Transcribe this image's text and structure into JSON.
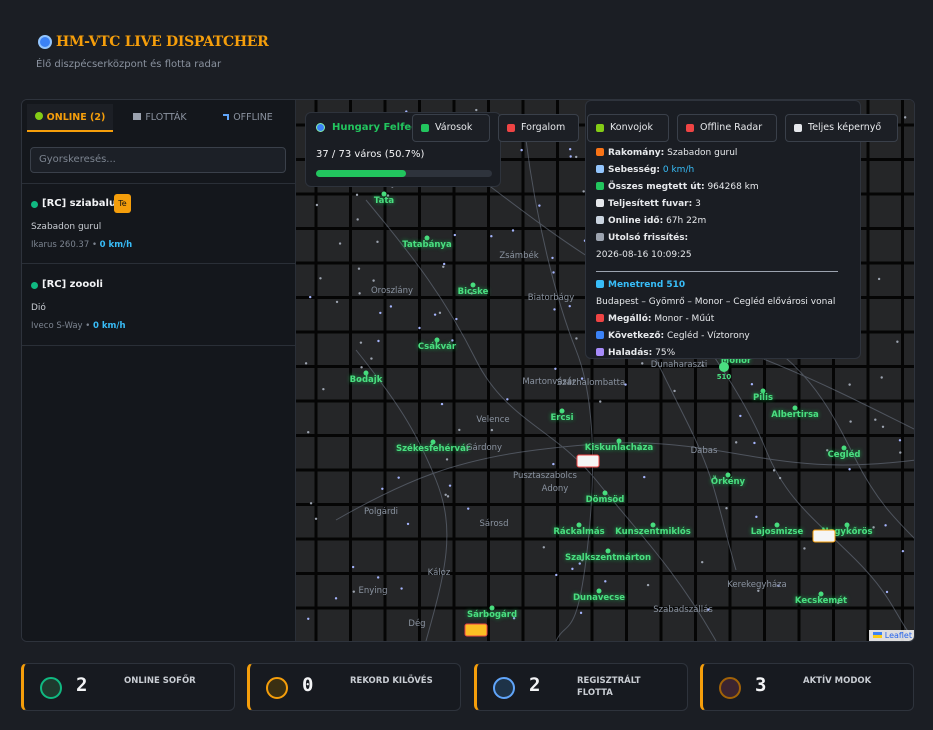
{
  "header": {
    "title": "HM-VTC LIVE DISPATCHER",
    "subtitle": "Élő diszpécserközpont és flotta radar"
  },
  "sidebar": {
    "tabs": [
      "ONLINE (2)",
      "FLOTTÁK",
      "OFFLINE"
    ],
    "search_placeholder": "Gyorskeresés...",
    "drivers": [
      {
        "name": "[RC] sziabalu",
        "badge": "Te",
        "status": "Szabadon gurul",
        "vehicle": "Ikarus 260.37",
        "speed": "0 km/h"
      },
      {
        "name": "[RC] zoooli",
        "status": "Dió",
        "vehicle": "Iveco S-Way",
        "speed": "0 km/h"
      }
    ]
  },
  "map": {
    "progress": {
      "title": "Hungary Felfed",
      "label": "37 / 73 város (50.7%)"
    },
    "buttons": [
      "Városok",
      "Forgalom",
      "Konvojok",
      "Offline Radar",
      "Teljes képernyő"
    ],
    "popup": {
      "rows": [
        [
          "Rakomány:",
          "Szabadon gurul"
        ],
        [
          "Sebesség:",
          "0 km/h"
        ],
        [
          "Összes megtett út:",
          "964268 km"
        ],
        [
          "Teljesített fuvar:",
          "3"
        ],
        [
          "Online idő:",
          "67h 22m"
        ],
        [
          "Utolsó frissítés:",
          ""
        ]
      ],
      "updated": "2026-08-16 10:09:25",
      "route_title": "Menetrend 510",
      "route": "Budapest – Gyömrő – Monor – Cegléd elővárosi vonal",
      "route_rows": [
        [
          "Megálló:",
          "Monor - Műút"
        ],
        [
          "Következő:",
          "Cegléd - Víztorony"
        ],
        [
          "Haladás:",
          "75%"
        ]
      ]
    },
    "cities_visited": [
      "Tata",
      "Tatabánya",
      "Bicske",
      "Csákvár",
      "Bodajk",
      "Székesfehérvár",
      "Ercsi",
      "Kiskunlacháza",
      "Dömsöd",
      "Ráckalmás",
      "Kunszentmiklós",
      "Szalkszentmárton",
      "Dunavecse",
      "Sárbogárd",
      "Örkény",
      "Lajosmizse",
      "Nagykőrös",
      "Kecskemét",
      "Cegléd",
      "Albertirsa",
      "Pilis",
      "Monor"
    ],
    "cities_other": [
      "Zsámbék",
      "Oroszlány",
      "Biatorbágy",
      "Martonvásár",
      "Százhalombatta",
      "Velence",
      "Gárdony",
      "Pusztaszabolcs",
      "Adony",
      "Polgárdi",
      "Sárosd",
      "Káloz",
      "Enying",
      "Dég",
      "Dabas",
      "Kerekegyháza",
      "Szabadszállás",
      "Dunaharaszti"
    ],
    "marker_label": "510",
    "attribution": "Leaflet"
  },
  "stats": [
    {
      "value": 2,
      "label": "ONLINE SOFŐR"
    },
    {
      "value": 0,
      "label": "REKORD KILÖVÉS"
    },
    {
      "value": 2,
      "label": "REGISZTRÁLT FLOTTA"
    },
    {
      "value": 3,
      "label": "AKTÍV MODOK"
    }
  ]
}
